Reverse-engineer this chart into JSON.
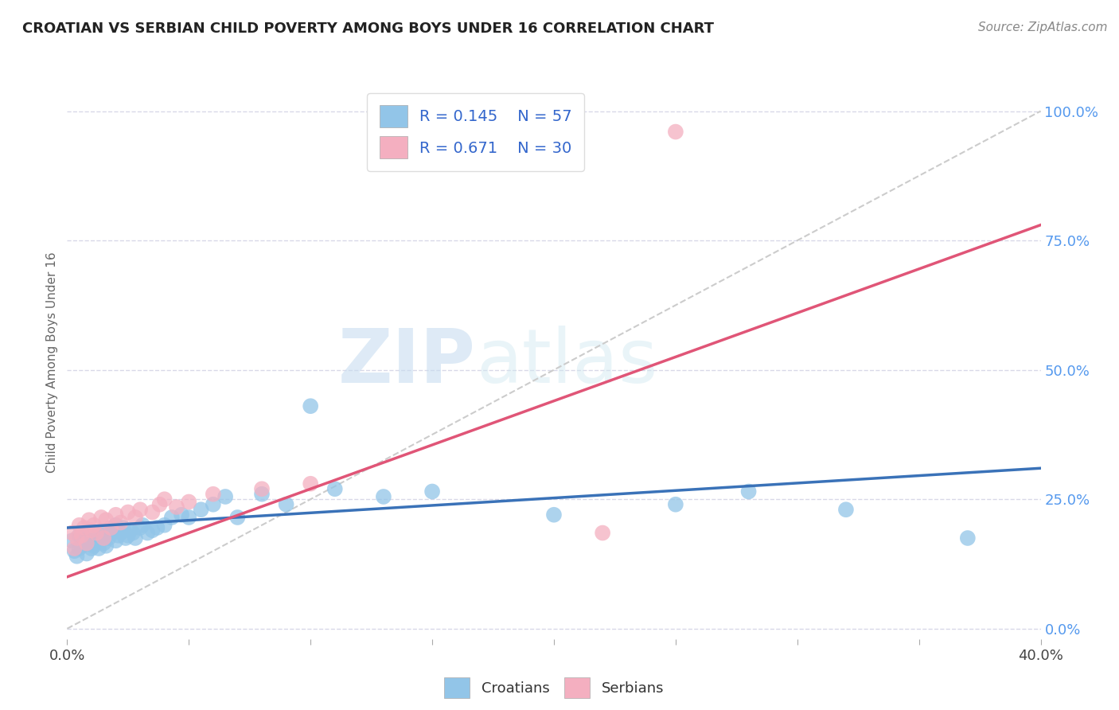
{
  "title": "CROATIAN VS SERBIAN CHILD POVERTY AMONG BOYS UNDER 16 CORRELATION CHART",
  "source": "Source: ZipAtlas.com",
  "ylabel": "Child Poverty Among Boys Under 16",
  "xlim": [
    0.0,
    0.4
  ],
  "ylim": [
    -0.02,
    1.05
  ],
  "xticks": [
    0.0,
    0.05,
    0.1,
    0.15,
    0.2,
    0.25,
    0.3,
    0.35,
    0.4
  ],
  "xticklabels": [
    "0.0%",
    "",
    "",
    "",
    "",
    "",
    "",
    "",
    "40.0%"
  ],
  "yticks_right": [
    0.0,
    0.25,
    0.5,
    0.75,
    1.0
  ],
  "yticklabels_right": [
    "0.0%",
    "25.0%",
    "50.0%",
    "75.0%",
    "100.0%"
  ],
  "croatian_color": "#92c5e8",
  "serbian_color": "#f4afc0",
  "croatian_line_color": "#3a72b8",
  "serbian_line_color": "#e05577",
  "ref_line_color": "#cccccc",
  "legend_R_croatian": "R = 0.145",
  "legend_N_croatian": "N = 57",
  "legend_R_serbian": "R = 0.671",
  "legend_N_serbian": "N = 30",
  "watermark_zip": "ZIP",
  "watermark_atlas": "atlas",
  "background_color": "#ffffff",
  "grid_color": "#d8d8e8",
  "croatian_x": [
    0.002,
    0.003,
    0.004,
    0.005,
    0.005,
    0.006,
    0.007,
    0.008,
    0.008,
    0.009,
    0.01,
    0.01,
    0.011,
    0.012,
    0.013,
    0.013,
    0.014,
    0.015,
    0.015,
    0.016,
    0.017,
    0.018,
    0.019,
    0.02,
    0.02,
    0.021,
    0.022,
    0.023,
    0.024,
    0.025,
    0.026,
    0.027,
    0.028,
    0.03,
    0.031,
    0.033,
    0.035,
    0.037,
    0.04,
    0.043,
    0.047,
    0.05,
    0.055,
    0.06,
    0.065,
    0.07,
    0.08,
    0.09,
    0.1,
    0.11,
    0.13,
    0.15,
    0.2,
    0.25,
    0.28,
    0.32,
    0.37
  ],
  "croatian_y": [
    0.17,
    0.15,
    0.14,
    0.18,
    0.155,
    0.16,
    0.175,
    0.145,
    0.165,
    0.17,
    0.155,
    0.18,
    0.16,
    0.17,
    0.155,
    0.175,
    0.18,
    0.165,
    0.185,
    0.16,
    0.175,
    0.185,
    0.195,
    0.17,
    0.2,
    0.18,
    0.185,
    0.195,
    0.175,
    0.18,
    0.19,
    0.185,
    0.175,
    0.195,
    0.2,
    0.185,
    0.19,
    0.195,
    0.2,
    0.215,
    0.22,
    0.215,
    0.23,
    0.24,
    0.255,
    0.215,
    0.26,
    0.24,
    0.43,
    0.27,
    0.255,
    0.265,
    0.22,
    0.24,
    0.265,
    0.23,
    0.175
  ],
  "serbian_x": [
    0.002,
    0.003,
    0.004,
    0.005,
    0.006,
    0.007,
    0.008,
    0.009,
    0.01,
    0.011,
    0.012,
    0.014,
    0.015,
    0.016,
    0.018,
    0.02,
    0.022,
    0.025,
    0.028,
    0.03,
    0.035,
    0.038,
    0.04,
    0.045,
    0.05,
    0.06,
    0.08,
    0.1,
    0.22,
    0.25
  ],
  "serbian_y": [
    0.185,
    0.155,
    0.175,
    0.2,
    0.18,
    0.195,
    0.165,
    0.21,
    0.19,
    0.2,
    0.185,
    0.215,
    0.175,
    0.21,
    0.195,
    0.22,
    0.205,
    0.225,
    0.215,
    0.23,
    0.225,
    0.24,
    0.25,
    0.235,
    0.245,
    0.26,
    0.27,
    0.28,
    0.185,
    0.96
  ],
  "croatian_line_x": [
    0.0,
    0.4
  ],
  "croatian_line_y": [
    0.195,
    0.31
  ],
  "serbian_line_x": [
    0.0,
    0.4
  ],
  "serbian_line_y": [
    0.1,
    0.78
  ]
}
